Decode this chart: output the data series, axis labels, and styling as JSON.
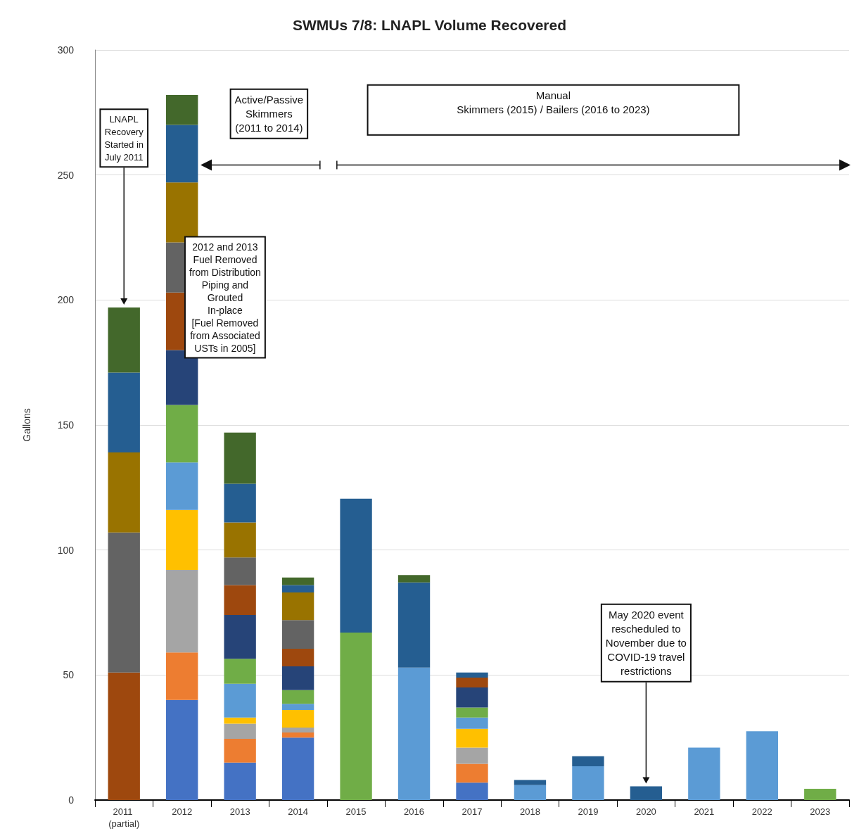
{
  "chart_data": {
    "type": "bar",
    "title": "SWMUs 7/8: LNAPL Volume Recovered",
    "ylabel": "Gallons",
    "stacked": true,
    "grid": "y",
    "categories": [
      "2011 (partial)",
      "2012",
      "2013",
      "2014",
      "2015",
      "2016",
      "2017",
      "2018",
      "2019",
      "2020",
      "2021",
      "2022",
      "2023"
    ],
    "ylim": [
      0,
      300
    ],
    "yticks": [
      0,
      50,
      100,
      150,
      200,
      250,
      300
    ],
    "series": [
      {
        "color": "#4472c4",
        "values": [
          null,
          40,
          15,
          25,
          null,
          null,
          7,
          null,
          null,
          null,
          null,
          null,
          null
        ]
      },
      {
        "color": "#ed7d31",
        "values": [
          null,
          19,
          9.5,
          2,
          null,
          null,
          7.5,
          null,
          null,
          null,
          null,
          null,
          null
        ]
      },
      {
        "color": "#a5a5a5",
        "values": [
          null,
          33,
          6,
          2,
          null,
          null,
          6.5,
          null,
          null,
          null,
          null,
          null,
          null
        ]
      },
      {
        "color": "#ffc000",
        "values": [
          null,
          24,
          2.5,
          7,
          null,
          null,
          7.5,
          null,
          null,
          null,
          null,
          null,
          null
        ]
      },
      {
        "color": "#5b9bd5",
        "values": [
          null,
          19,
          13.5,
          2.5,
          null,
          53,
          4.5,
          6,
          13.5,
          null,
          21,
          27.5,
          null
        ]
      },
      {
        "color": "#70ad47",
        "values": [
          null,
          23,
          10,
          5.5,
          67,
          null,
          4,
          null,
          null,
          null,
          null,
          null,
          4.5
        ]
      },
      {
        "color": "#264478",
        "values": [
          null,
          22,
          17.5,
          9.5,
          null,
          null,
          8,
          null,
          null,
          null,
          null,
          null,
          null
        ]
      },
      {
        "color": "#9e480e",
        "values": [
          51,
          23,
          12,
          7,
          null,
          null,
          4,
          null,
          null,
          null,
          null,
          null,
          null
        ]
      },
      {
        "color": "#636363",
        "values": [
          56,
          20,
          11,
          11.5,
          null,
          null,
          null,
          null,
          null,
          null,
          null,
          null,
          null
        ]
      },
      {
        "color": "#997300",
        "values": [
          32,
          24,
          14,
          11,
          null,
          null,
          null,
          null,
          null,
          null,
          null,
          null,
          null
        ]
      },
      {
        "color": "#255e91",
        "values": [
          32,
          23,
          15.5,
          3,
          53.5,
          34,
          2,
          2,
          4,
          5.5,
          null,
          null,
          null
        ]
      },
      {
        "color": "#43682b",
        "values": [
          26,
          12,
          20.5,
          3,
          null,
          3,
          null,
          null,
          null,
          null,
          null,
          null,
          null
        ]
      }
    ],
    "annotations": [
      "LNAPL\nRecovery\nStarted in\nJuly 2011",
      "Active/Passive\nSkimmers\n(2011 to 2014)",
      "Manual\nSkimmers (2015) / Bailers (2016 to 2023)",
      "2012 and 2013\nFuel Removed\nfrom Distribution\nPiping and\nGrouted\nIn-place\n[Fuel Removed\nfrom Associated\nUSTs in 2005]",
      "May 2020 event\nrescheduled to\nNovember due to\nCOVID-19 travel\nrestrictions"
    ]
  }
}
